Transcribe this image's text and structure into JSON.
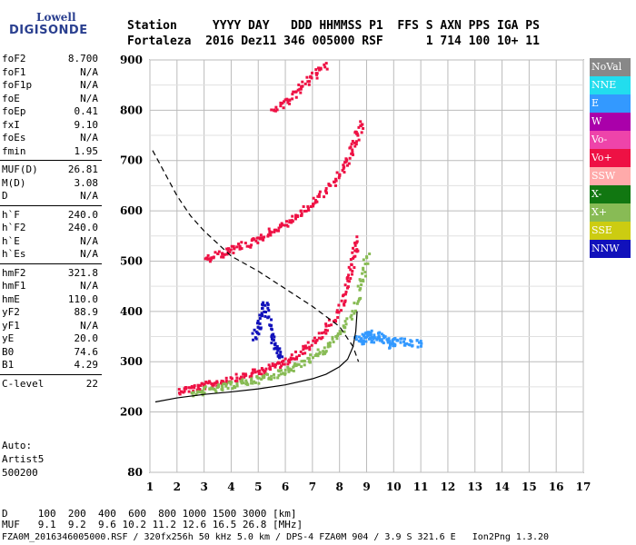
{
  "logo": {
    "line1": "Lowell",
    "line2": "DIGISONDE"
  },
  "header": {
    "labels": "Station     YYYY DAY   DDD HHMMSS P1  FFS S AXN PPS IGA PS",
    "values": "Fortaleza  2016 Dez11 346 005000 RSF      1 714 100 10+ 11"
  },
  "params": {
    "group1": [
      {
        "key": "foF2",
        "value": "8.700"
      },
      {
        "key": "foF1",
        "value": "N/A"
      },
      {
        "key": "foF1p",
        "value": "N/A"
      },
      {
        "key": "foE",
        "value": "N/A"
      },
      {
        "key": "foEp",
        "value": "0.41"
      },
      {
        "key": "fxI",
        "value": "9.10"
      },
      {
        "key": "foEs",
        "value": "N/A"
      },
      {
        "key": "fmin",
        "value": "1.95"
      }
    ],
    "group2": [
      {
        "key": "MUF(D)",
        "value": "26.81"
      },
      {
        "key": "M(D)",
        "value": "3.08"
      },
      {
        "key": "D",
        "value": "N/A"
      }
    ],
    "group3": [
      {
        "key": "h`F",
        "value": "240.0"
      },
      {
        "key": "h`F2",
        "value": "240.0"
      },
      {
        "key": "h`E",
        "value": "N/A"
      },
      {
        "key": "h`Es",
        "value": "N/A"
      }
    ],
    "group4": [
      {
        "key": "hmF2",
        "value": "321.8"
      },
      {
        "key": "hmF1",
        "value": "N/A"
      },
      {
        "key": "hmE",
        "value": "110.0"
      },
      {
        "key": "yF2",
        "value": "88.9"
      },
      {
        "key": "yF1",
        "value": "N/A"
      },
      {
        "key": "yE",
        "value": "20.0"
      },
      {
        "key": "B0",
        "value": "74.6"
      },
      {
        "key": "B1",
        "value": "4.29"
      }
    ],
    "group5": [
      {
        "key": "C-level",
        "value": "22"
      }
    ]
  },
  "auto": {
    "line1": "Auto:",
    "line2": "Artist5",
    "line3": "500200"
  },
  "legend": [
    {
      "label": "NoVal",
      "color": "#888888",
      "text_color": "#ffffff"
    },
    {
      "label": "NNE",
      "color": "#22ddee",
      "text_color": "#ffffff"
    },
    {
      "label": "E",
      "color": "#3399ff",
      "text_color": "#ffffff"
    },
    {
      "label": "W",
      "color": "#aa00aa",
      "text_color": "#ffffff"
    },
    {
      "label": "Vo-",
      "color": "#ee44aa",
      "text_color": "#ffffff"
    },
    {
      "label": "Vo+",
      "color": "#ee1144",
      "text_color": "#ffffff"
    },
    {
      "label": "SSW",
      "color": "#ffaaaa",
      "text_color": "#ffffff"
    },
    {
      "label": "X-",
      "color": "#117711",
      "text_color": "#ffffff"
    },
    {
      "label": "X+",
      "color": "#88bb55",
      "text_color": "#ffffff"
    },
    {
      "label": "SSE",
      "color": "#cccc11",
      "text_color": "#ffffff"
    },
    {
      "label": "NNW",
      "color": "#1111bb",
      "text_color": "#ffffff"
    }
  ],
  "footer": {
    "line1": "D     100  200  400  600  800 1000 1500 3000 [km]",
    "line2": "MUF   9.1  9.2  9.6 10.2 11.2 12.6 16.5 26.8 [MHz]",
    "line3": "FZA0M_2016346005000.RSF / 320fx256h 50 kHz 5.0 km / DPS-4 FZA0M 904 / 3.9 S 321.6 E   Ion2Png 1.3.20"
  },
  "chart_data": {
    "type": "scatter",
    "x_ticks": [
      1,
      2,
      3,
      4,
      5,
      6,
      7,
      8,
      9,
      10,
      11,
      12,
      13,
      14,
      15,
      16,
      17
    ],
    "y_ticks": [
      80,
      200,
      300,
      400,
      500,
      600,
      700,
      800,
      900
    ],
    "xlim": [
      1,
      17
    ],
    "ylim": [
      80,
      900
    ],
    "grid": true,
    "legend_position": "right",
    "traces": [
      {
        "name": "Vo+",
        "x": [
          2.0,
          2.5,
          3.0,
          3.5,
          4.0,
          4.5,
          5.0,
          5.5,
          6.0,
          6.5,
          7.0,
          7.5,
          8.0,
          8.3,
          8.5,
          8.6
        ],
        "y": [
          245,
          250,
          255,
          262,
          268,
          275,
          283,
          293,
          305,
          320,
          340,
          370,
          410,
          460,
          510,
          550
        ]
      },
      {
        "name": "X+",
        "x": [
          2.5,
          3.0,
          3.5,
          4.0,
          4.5,
          5.0,
          5.5,
          6.0,
          6.5,
          7.0,
          7.5,
          8.0,
          8.5,
          8.8,
          9.0
        ],
        "y": [
          240,
          245,
          250,
          256,
          262,
          268,
          276,
          286,
          298,
          312,
          330,
          360,
          400,
          460,
          520
        ]
      },
      {
        "name": "Vo+",
        "x": [
          3.0,
          3.5,
          4.0,
          4.5,
          5.0,
          5.5,
          6.0,
          6.5,
          7.0,
          7.5,
          8.0,
          8.3,
          8.6,
          8.8
        ],
        "y": [
          505,
          515,
          525,
          535,
          548,
          562,
          578,
          596,
          618,
          645,
          678,
          710,
          750,
          780
        ]
      },
      {
        "name": "Vo+",
        "x": [
          5.5,
          6.0,
          6.5,
          7.0,
          7.5
        ],
        "y": [
          800,
          820,
          845,
          870,
          895
        ]
      },
      {
        "name": "NNW",
        "x": [
          4.8,
          5.0,
          5.2,
          5.4,
          5.6,
          5.8
        ],
        "y": [
          350,
          380,
          420,
          360,
          330,
          310
        ]
      },
      {
        "name": "E",
        "x": [
          8.6,
          8.8,
          9.0,
          9.2,
          9.5,
          9.8,
          10.0,
          10.5,
          11.0
        ],
        "y": [
          350,
          340,
          360,
          345,
          355,
          335,
          345,
          340,
          338
        ]
      }
    ],
    "curves": [
      {
        "name": "profile",
        "style": "solid",
        "x": [
          1.2,
          2.0,
          3.0,
          4.0,
          5.0,
          6.0,
          7.0,
          7.5,
          8.0,
          8.3,
          8.5,
          8.6,
          8.65
        ],
        "y": [
          220,
          228,
          235,
          240,
          246,
          254,
          266,
          275,
          290,
          305,
          330,
          360,
          400
        ]
      },
      {
        "name": "muf",
        "style": "dashed",
        "x": [
          1.1,
          1.5,
          2.0,
          2.5,
          3.0,
          3.5,
          4.0,
          5.0,
          6.0,
          7.0,
          7.5,
          8.0,
          8.5,
          8.7
        ],
        "y": [
          720,
          680,
          630,
          590,
          560,
          535,
          510,
          480,
          445,
          410,
          390,
          370,
          330,
          300
        ]
      }
    ]
  }
}
